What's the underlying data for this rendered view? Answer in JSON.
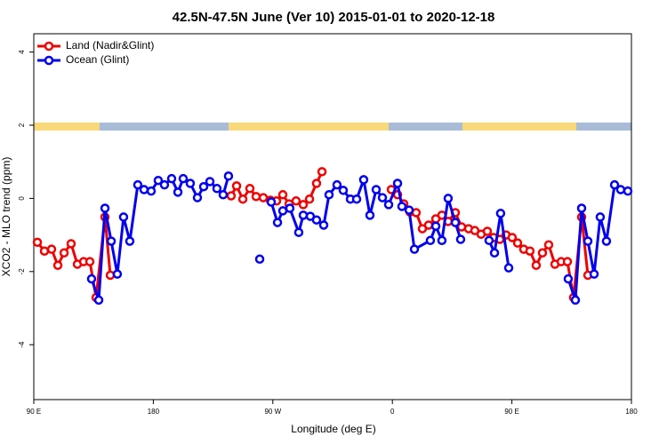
{
  "chart_data": {
    "type": "line",
    "title": "42.5N-47.5N June (Ver 10)   2015-01-01 to 2020-12-18",
    "xlabel": "Longitude (deg E)",
    "ylabel": "XCO2 - MLO trend (ppm)",
    "xlim": [
      90,
      540
    ],
    "xticks": [
      {
        "value": 90,
        "label": "90 E"
      },
      180,
      {
        "value": 270,
        "label": "90 W"
      },
      {
        "value": 360,
        "label": "0"
      },
      {
        "value": 450,
        "label": "90 E"
      },
      {
        "value": 540,
        "label": "180"
      }
    ],
    "ylim": [
      -5.5,
      4.5
    ],
    "yticks": [
      4,
      2,
      0,
      -2,
      -4
    ],
    "legend": "top-left",
    "series": [
      {
        "name": "Land (Nadir&Glint)",
        "color": "#ee0000",
        "x": [
          92.7,
          98.0,
          103.4,
          108.1,
          112.8,
          118.1,
          122.8,
          127.5,
          132.2,
          136.9,
          143.6,
          147.6,
          null,
          238.6,
          242.7,
          247.4,
          252.7,
          257.4,
          262.8,
          268.1,
          272.8,
          277.5,
          282.2,
          287.5,
          292.9,
          297.6,
          302.9,
          307.0,
          null,
          359.2,
          363.9,
          368.6,
          373.2,
          377.9,
          382.6,
          387.3,
          392.7,
          397.3,
          402.0,
          407.4,
          412.1,
          417.4,
          422.1,
          426.8,
          431.5,
          436.2,
          440.9,
          445.6,
          450.2,
          454.3,
          458.9,
          463.6,
          468.3,
          473.0,
          477.7,
          482.4,
          487.1,
          491.8,
          496.4,
          502.5,
          507.2
        ],
        "values": [
          -1.2,
          -1.44,
          -1.39,
          -1.83,
          -1.49,
          -1.24,
          -1.8,
          -1.73,
          -1.73,
          -2.71,
          -0.51,
          -2.1,
          null,
          0.07,
          0.34,
          -0.02,
          0.27,
          0.05,
          0.02,
          -0.05,
          -0.07,
          0.1,
          -0.15,
          -0.07,
          -0.17,
          -0.02,
          0.41,
          0.73,
          null,
          0.24,
          0.1,
          -0.15,
          -0.37,
          -0.39,
          -0.83,
          -0.73,
          -0.56,
          -0.46,
          -0.63,
          -0.39,
          -0.78,
          -0.83,
          -0.88,
          -0.98,
          -0.9,
          -1.07,
          -1.12,
          -1.0,
          -1.07,
          -1.22,
          -1.39,
          -1.44,
          -1.83,
          -1.49,
          -1.27,
          -1.8,
          -1.73,
          -1.73,
          -2.71,
          -0.51,
          -2.1
        ]
      },
      {
        "name": "Ocean (Glint)",
        "color": "#0000ee",
        "x": [
          133.5,
          138.9,
          143.6,
          148.3,
          152.9,
          157.6,
          162.3,
          168.3,
          173.0,
          178.4,
          183.7,
          188.4,
          193.8,
          198.5,
          202.5,
          207.8,
          213.2,
          217.9,
          222.6,
          227.9,
          232.6,
          236.6,
          null,
          260.1,
          null,
          268.8,
          273.5,
          277.5,
          282.8,
          289.5,
          292.9,
          298.2,
          302.9,
          308.3,
          312.3,
          318.3,
          323.0,
          328.4,
          333.1,
          338.4,
          343.1,
          347.8,
          352.5,
          357.2,
          363.9,
          367.2,
          372.6,
          376.6,
          388.6,
          392.7,
          397.3,
          402.0,
          407.4,
          411.4,
          null,
          432.8,
          436.9,
          441.5,
          447.6,
          null,
          492.4,
          497.8,
          502.5,
          507.2,
          511.9,
          516.5,
          521.2,
          527.3,
          531.9,
          537.3
        ],
        "values": [
          -2.2,
          -2.78,
          -0.27,
          -1.17,
          -2.07,
          -0.51,
          -1.17,
          0.37,
          0.24,
          0.2,
          0.49,
          0.37,
          0.54,
          0.17,
          0.54,
          0.41,
          0.02,
          0.32,
          0.46,
          0.27,
          0.1,
          0.61,
          null,
          -1.66,
          null,
          -0.1,
          -0.66,
          -0.34,
          -0.27,
          -0.93,
          -0.46,
          -0.49,
          -0.59,
          -0.73,
          0.1,
          0.37,
          0.22,
          -0.02,
          -0.02,
          0.51,
          -0.46,
          0.24,
          0.02,
          -0.17,
          0.41,
          -0.22,
          -0.32,
          -1.39,
          -1.15,
          -0.76,
          -1.15,
          0.0,
          -0.66,
          -1.12,
          null,
          -1.15,
          -1.49,
          -0.41,
          -1.9,
          null,
          -2.2,
          -2.78,
          -0.27,
          -1.17,
          -2.07,
          -0.51,
          -1.17,
          0.37,
          0.24,
          0.2
        ]
      }
    ]
  }
}
